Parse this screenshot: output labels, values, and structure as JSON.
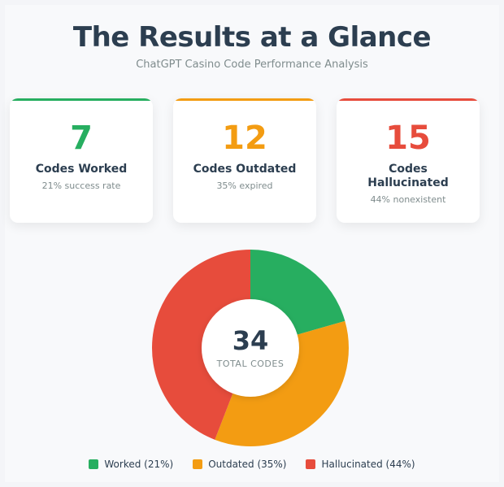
{
  "header": {
    "title": "The Results at a Glance",
    "subtitle": "ChatGPT Casino Code Performance Analysis"
  },
  "cards": [
    {
      "value": "7",
      "label": "Codes Worked",
      "sub": "21% success rate",
      "color": "#27ae60"
    },
    {
      "value": "12",
      "label": "Codes Outdated",
      "sub": "35% expired",
      "color": "#f39c12"
    },
    {
      "value": "15",
      "label": "Codes Hallucinated",
      "sub": "44% nonexistent",
      "color": "#e74c3c"
    }
  ],
  "chart_data": {
    "type": "pie",
    "categories": [
      "Worked",
      "Outdated",
      "Hallucinated"
    ],
    "values": [
      7,
      12,
      15
    ],
    "colors": [
      "#27ae60",
      "#f39c12",
      "#e74c3c"
    ],
    "center_value": "34",
    "center_label": "TOTAL CODES",
    "legend": [
      "Worked (21%)",
      "Outdated (35%)",
      "Hallucinated (44%)"
    ],
    "legend_position": "bottom"
  }
}
